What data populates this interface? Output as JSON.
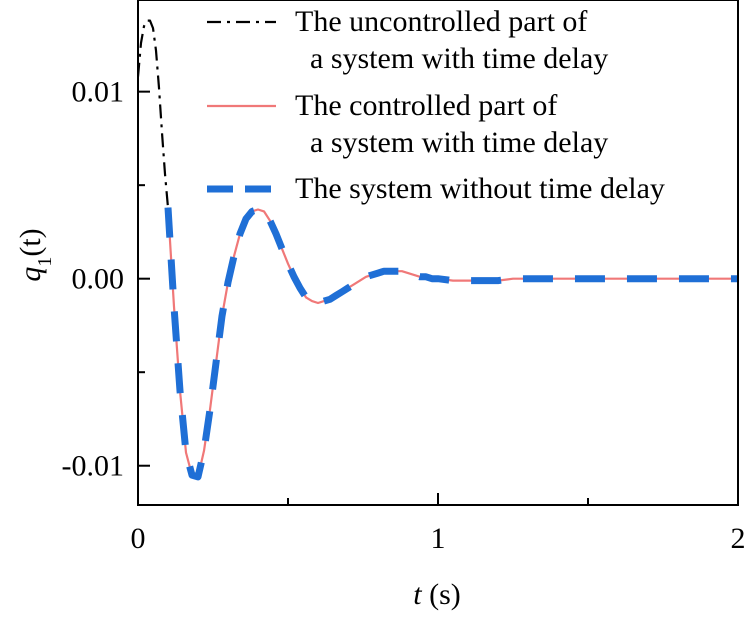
{
  "chart_data": {
    "type": "line",
    "title": "",
    "xlabel": "t (s)",
    "xlabel_parts": {
      "var": "t",
      "unit": " (s)"
    },
    "ylabel": "q1(t)",
    "ylabel_parts": {
      "var": "q",
      "sub": "1",
      "rest": "(t)"
    },
    "xlim": [
      0,
      2
    ],
    "ylim": [
      -0.0121,
      0.0149
    ],
    "xticks": [
      0,
      1,
      2
    ],
    "xtick_labels": [
      "0",
      "1",
      "2"
    ],
    "xminor_ticks": [
      0.5,
      1.5
    ],
    "yticks": [
      0.01,
      0.0,
      -0.01
    ],
    "ytick_labels": [
      "0.01",
      "0.00",
      "-0.01"
    ],
    "yminor_ticks": [
      0.005,
      -0.005
    ],
    "grid": false,
    "legend_position": "top-right",
    "series": [
      {
        "name": "The uncontrolled part of a system with time delay",
        "legend_lines": [
          "The uncontrolled part of",
          "a system with time delay"
        ],
        "color": "#000000",
        "style": "dashdot",
        "x": [
          0.0,
          0.01,
          0.02,
          0.03,
          0.04,
          0.05,
          0.06,
          0.07,
          0.08,
          0.09,
          0.1
        ],
        "y": [
          0.0108,
          0.0126,
          0.0135,
          0.0138,
          0.0138,
          0.0134,
          0.0122,
          0.0102,
          0.0078,
          0.0056,
          0.0038
        ]
      },
      {
        "name": "The controlled part of a system with time delay",
        "legend_lines": [
          "The controlled part of",
          "a system with time delay"
        ],
        "color": "#f07878",
        "style": "solid",
        "x": [
          0.1,
          0.12,
          0.14,
          0.16,
          0.18,
          0.2,
          0.22,
          0.24,
          0.26,
          0.28,
          0.3,
          0.32,
          0.34,
          0.36,
          0.38,
          0.4,
          0.42,
          0.44,
          0.46,
          0.48,
          0.5,
          0.52,
          0.54,
          0.56,
          0.58,
          0.6,
          0.62,
          0.64,
          0.66,
          0.68,
          0.7,
          0.72,
          0.74,
          0.76,
          0.78,
          0.8,
          0.82,
          0.84,
          0.86,
          0.88,
          0.9,
          0.92,
          0.94,
          0.96,
          0.98,
          1.0,
          1.05,
          1.1,
          1.15,
          1.2,
          1.25,
          1.3,
          1.35,
          1.4,
          1.5,
          1.6,
          1.7,
          1.8,
          1.9,
          2.0
        ],
        "y": [
          0.0038,
          -0.0015,
          -0.006,
          -0.0093,
          -0.0105,
          -0.0106,
          -0.0092,
          -0.007,
          -0.0045,
          -0.002,
          -0.0002,
          0.0012,
          0.0024,
          0.0032,
          0.0036,
          0.0037,
          0.0036,
          0.0031,
          0.0024,
          0.0016,
          0.0008,
          0.0001,
          -0.0005,
          -0.001,
          -0.0012,
          -0.0013,
          -0.0012,
          -0.0011,
          -0.0009,
          -0.0007,
          -0.0005,
          -0.0003,
          -0.0001,
          0.0001,
          0.0002,
          0.0003,
          0.0004,
          0.0004,
          0.0004,
          0.0004,
          0.0003,
          0.0002,
          0.0001,
          0.0001,
          0.0,
          0.0,
          -0.0001,
          -0.0001,
          -0.0001,
          -0.0001,
          0.0,
          0.0,
          0.0,
          0.0,
          0.0,
          0.0,
          0.0,
          0.0,
          0.0,
          0.0
        ]
      },
      {
        "name": "The system without time delay",
        "legend_lines": [
          "The system without time delay"
        ],
        "color": "#1f6fd6",
        "style": "dashed",
        "x": [
          0.1,
          0.12,
          0.14,
          0.16,
          0.18,
          0.2,
          0.22,
          0.24,
          0.26,
          0.28,
          0.3,
          0.32,
          0.34,
          0.36,
          0.38,
          0.4,
          0.42,
          0.44,
          0.46,
          0.48,
          0.5,
          0.52,
          0.54,
          0.56,
          0.58,
          0.6,
          0.62,
          0.64,
          0.66,
          0.68,
          0.7,
          0.72,
          0.74,
          0.76,
          0.78,
          0.8,
          0.82,
          0.84,
          0.86,
          0.88,
          0.9,
          0.92,
          0.94,
          0.96,
          0.98,
          1.0,
          1.05,
          1.1,
          1.15,
          1.2,
          1.25,
          1.3,
          1.35,
          1.4,
          1.5,
          1.6,
          1.7,
          1.8,
          1.9,
          2.0
        ],
        "y": [
          0.0038,
          -0.0015,
          -0.006,
          -0.0093,
          -0.0105,
          -0.0106,
          -0.0092,
          -0.007,
          -0.0045,
          -0.002,
          -0.0002,
          0.0012,
          0.0024,
          0.0032,
          0.0036,
          0.0037,
          0.0036,
          0.0031,
          0.0024,
          0.0016,
          0.0008,
          0.0001,
          -0.0005,
          -0.001,
          -0.0012,
          -0.0013,
          -0.0012,
          -0.0011,
          -0.0009,
          -0.0007,
          -0.0005,
          -0.0003,
          -0.0001,
          0.0001,
          0.0002,
          0.0003,
          0.0004,
          0.0004,
          0.0004,
          0.0004,
          0.0003,
          0.0002,
          0.0001,
          0.0001,
          0.0,
          0.0,
          -0.0001,
          -0.0001,
          -0.0001,
          -0.0001,
          0.0,
          0.0,
          0.0,
          0.0,
          0.0,
          0.0,
          0.0,
          0.0,
          0.0,
          0.0
        ]
      }
    ]
  }
}
